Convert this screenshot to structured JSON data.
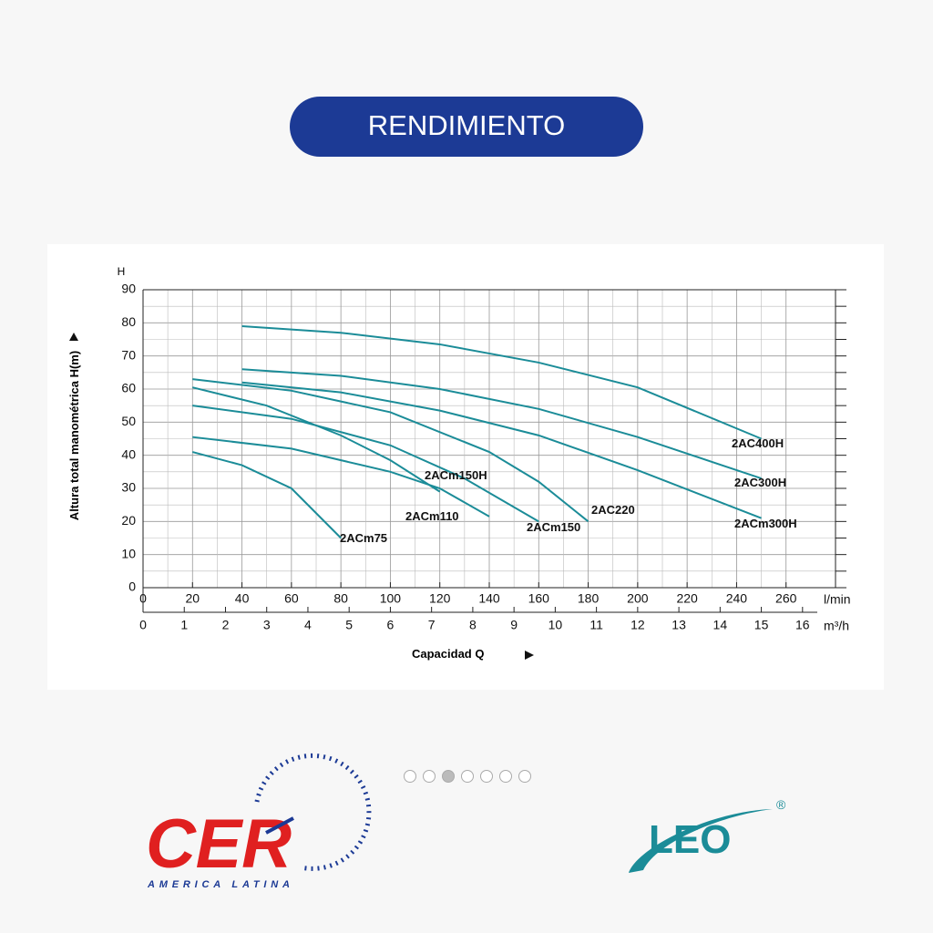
{
  "header": {
    "title": "RENDIMIENTO"
  },
  "chart_data": {
    "type": "line",
    "y_axis_symbol": "H",
    "y_title": "Altura total manométrica H(m)",
    "x_title": "Capacidad Q",
    "x_unit": "l/min",
    "x2_unit": "m³/h",
    "xlim": [
      0,
      280
    ],
    "xticks": [
      0,
      20,
      40,
      60,
      80,
      100,
      120,
      140,
      160,
      180,
      200,
      220,
      240,
      260
    ],
    "x2lim": [
      0,
      16.8
    ],
    "x2ticks": [
      0,
      1,
      2,
      3,
      4,
      5,
      6,
      7,
      8,
      9,
      10,
      11,
      12,
      13,
      14,
      15,
      16
    ],
    "ylim": [
      0,
      90
    ],
    "yticks": [
      0,
      10,
      20,
      30,
      40,
      50,
      60,
      70,
      80,
      90
    ],
    "grid": true,
    "series": [
      {
        "name": "2AC400H",
        "color": "#1b8c98",
        "x": [
          40,
          80,
          120,
          160,
          200,
          250
        ],
        "values": [
          79,
          77,
          73.5,
          68,
          60.5,
          45
        ]
      },
      {
        "name": "2AC300H",
        "color": "#1b8c98",
        "x": [
          40,
          80,
          120,
          160,
          200,
          250
        ],
        "values": [
          66,
          64,
          60,
          54,
          45.5,
          33
        ]
      },
      {
        "name": "2ACm300H",
        "color": "#1b8c98",
        "x": [
          40,
          80,
          120,
          160,
          200,
          250
        ],
        "values": [
          62,
          59,
          53.5,
          46,
          35.5,
          21
        ]
      },
      {
        "name": "2AC220",
        "color": "#1b8c98",
        "x": [
          20,
          60,
          100,
          140,
          160,
          180
        ],
        "values": [
          63,
          59.5,
          53,
          41,
          32,
          20
        ]
      },
      {
        "name": "2ACm150",
        "color": "#1b8c98",
        "x": [
          20,
          60,
          100,
          130,
          160
        ],
        "values": [
          55,
          51,
          43,
          33,
          20
        ]
      },
      {
        "name": "2ACm150H",
        "color": "#1b8c98",
        "x": [
          20,
          50,
          80,
          100,
          120
        ],
        "values": [
          60.5,
          55,
          46,
          38.5,
          29
        ]
      },
      {
        "name": "2ACm110",
        "color": "#1b8c98",
        "x": [
          20,
          60,
          100,
          120,
          140
        ],
        "values": [
          45.5,
          42,
          35,
          30,
          21.5
        ]
      },
      {
        "name": "2ACm75",
        "color": "#1b8c98",
        "x": [
          20,
          40,
          60,
          80
        ],
        "values": [
          41,
          37,
          30,
          15
        ]
      }
    ]
  },
  "logos": {
    "left": {
      "name": "CER",
      "subtitle": "AMERICA LATINA"
    },
    "right": {
      "name": "LEO",
      "mark": "®"
    }
  }
}
